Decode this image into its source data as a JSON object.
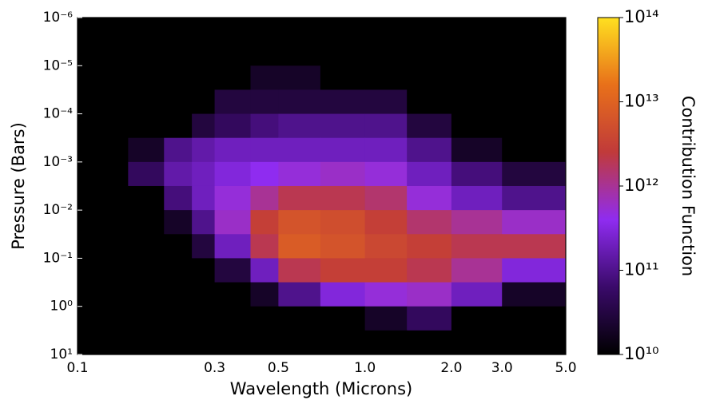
{
  "chart_data": {
    "type": "heatmap",
    "x_label": "Wavelength (Microns)",
    "y_label": "Pressure (Bars)",
    "colorbar_label": "Contribution Function",
    "x_scale": "log",
    "y_scale": "log",
    "y_inverted": true,
    "xlim": [
      0.1,
      5.0
    ],
    "ylim": [
      1e-06,
      10
    ],
    "xticks": [
      0.1,
      0.3,
      0.5,
      {
        "value": 1,
        "label": "1.0"
      },
      {
        "value": 2,
        "label": "2.0"
      },
      {
        "value": 3,
        "label": "3.0"
      },
      {
        "value": 5,
        "label": "5.0"
      }
    ],
    "yticks": [
      {
        "value": 1e-06,
        "label": "10⁻⁶"
      },
      {
        "value": 1e-05,
        "label": "10⁻⁵"
      },
      {
        "value": 0.0001,
        "label": "10⁻⁴"
      },
      {
        "value": 0.001,
        "label": "10⁻³"
      },
      {
        "value": 0.01,
        "label": "10⁻²"
      },
      {
        "value": 0.1,
        "label": "10⁻¹"
      },
      {
        "value": 1,
        "label": "10⁰"
      },
      {
        "value": 10,
        "label": "10¹"
      }
    ],
    "clim": [
      10000000000.0,
      100000000000000.0
    ],
    "cticks": [
      {
        "value": 10000000000.0,
        "label": "10¹⁰"
      },
      {
        "value": 100000000000.0,
        "label": "10¹¹"
      },
      {
        "value": 1000000000000.0,
        "label": "10¹²"
      },
      {
        "value": 10000000000000.0,
        "label": "10¹³"
      },
      {
        "value": 100000000000000.0,
        "label": "10¹⁴"
      }
    ],
    "colormap": [
      "#000000",
      "#3a0a6a",
      "#8f2cf0",
      "#c03a3a",
      "#e8701a",
      "#ffe020"
    ],
    "background": "#000000",
    "x_edges": [
      0.1,
      0.15,
      0.2,
      0.25,
      0.3,
      0.4,
      0.5,
      0.7,
      1.0,
      1.4,
      2.0,
      3.0,
      5.0
    ],
    "y_edges": [
      1e-06,
      3.16e-06,
      1e-05,
      3.16e-05,
      0.0001,
      0.000316,
      0.001,
      0.00316,
      0.01,
      0.0316,
      0.1,
      0.316,
      1,
      3.16,
      10
    ],
    "z": [
      [
        1000000000.0,
        1000000000.0,
        1000000000.0,
        1000000000.0,
        1000000000.0,
        1000000000.0,
        1000000000.0,
        1000000000.0,
        1000000000.0,
        1000000000.0,
        1000000000.0,
        1000000000.0
      ],
      [
        1000000000.0,
        1000000000.0,
        1000000000.0,
        1000000000.0,
        1000000000.0,
        1000000000.0,
        1000000000.0,
        1000000000.0,
        1000000000.0,
        1000000000.0,
        1000000000.0,
        1000000000.0
      ],
      [
        1000000000.0,
        1000000000.0,
        1000000000.0,
        1000000000.0,
        1000000000.0,
        20000000000.0,
        20000000000.0,
        1000000000.0,
        1000000000.0,
        1000000000.0,
        1000000000.0,
        1000000000.0
      ],
      [
        1000000000.0,
        1000000000.0,
        1000000000.0,
        1000000000.0,
        30000000000.0,
        30000000000.0,
        30000000000.0,
        30000000000.0,
        30000000000.0,
        1000000000.0,
        1000000000.0,
        1000000000.0
      ],
      [
        1000000000.0,
        1000000000.0,
        1000000000.0,
        30000000000.0,
        50000000000.0,
        80000000000.0,
        100000000000.0,
        100000000000.0,
        100000000000.0,
        30000000000.0,
        1000000000.0,
        1000000000.0
      ],
      [
        1000000000.0,
        20000000000.0,
        100000000000.0,
        150000000000.0,
        200000000000.0,
        200000000000.0,
        200000000000.0,
        200000000000.0,
        200000000000.0,
        100000000000.0,
        20000000000.0,
        1000000000.0
      ],
      [
        1000000000.0,
        50000000000.0,
        150000000000.0,
        200000000000.0,
        300000000000.0,
        400000000000.0,
        500000000000.0,
        600000000000.0,
        500000000000.0,
        200000000000.0,
        80000000000.0,
        30000000000.0
      ],
      [
        1000000000.0,
        1000000000.0,
        80000000000.0,
        200000000000.0,
        500000000000.0,
        1000000000000.0,
        2000000000000.0,
        2000000000000.0,
        1500000000000.0,
        500000000000.0,
        200000000000.0,
        100000000000.0
      ],
      [
        1000000000.0,
        1000000000.0,
        20000000000.0,
        100000000000.0,
        600000000000.0,
        3000000000000.0,
        6000000000000.0,
        5000000000000.0,
        3000000000000.0,
        1500000000000.0,
        1000000000000.0,
        600000000000.0
      ],
      [
        1000000000.0,
        1000000000.0,
        1000000000.0,
        30000000000.0,
        200000000000.0,
        2000000000000.0,
        8000000000000.0,
        6000000000000.0,
        4000000000000.0,
        3000000000000.0,
        2000000000000.0,
        2000000000000.0
      ],
      [
        1000000000.0,
        1000000000.0,
        1000000000.0,
        1000000000.0,
        30000000000.0,
        200000000000.0,
        2000000000000.0,
        3000000000000.0,
        3000000000000.0,
        2000000000000.0,
        1000000000000.0,
        300000000000.0
      ],
      [
        1000000000.0,
        1000000000.0,
        1000000000.0,
        1000000000.0,
        1000000000.0,
        20000000000.0,
        100000000000.0,
        300000000000.0,
        500000000000.0,
        600000000000.0,
        200000000000.0,
        20000000000.0
      ],
      [
        1000000000.0,
        1000000000.0,
        1000000000.0,
        1000000000.0,
        1000000000.0,
        1000000000.0,
        1000000000.0,
        1000000000.0,
        20000000000.0,
        50000000000.0,
        1000000000.0,
        1000000000.0
      ],
      [
        1000000000.0,
        1000000000.0,
        1000000000.0,
        1000000000.0,
        1000000000.0,
        1000000000.0,
        1000000000.0,
        1000000000.0,
        1000000000.0,
        1000000000.0,
        1000000000.0,
        1000000000.0
      ]
    ]
  }
}
